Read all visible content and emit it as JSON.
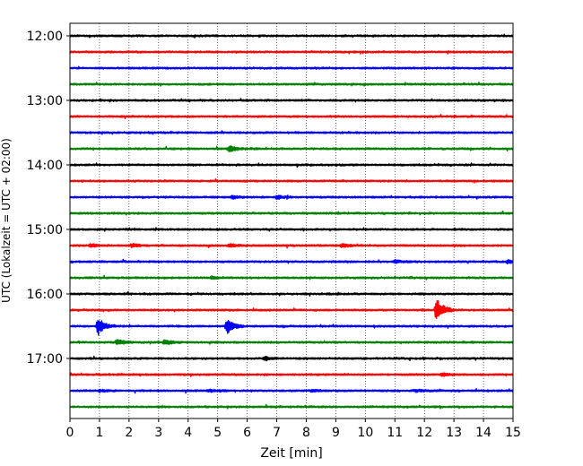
{
  "chart_data": {
    "type": "line",
    "title": "",
    "xlabel": "Zeit  [min]",
    "ylabel": "UTC (Lokalzeit = UTC + 02:00)",
    "xlim": [
      0,
      15
    ],
    "x_ticks": [
      0,
      1,
      2,
      3,
      4,
      5,
      6,
      7,
      8,
      9,
      10,
      11,
      12,
      13,
      14,
      15
    ],
    "x_tick_labels": [
      "0",
      "1",
      "2",
      "3",
      "4",
      "5",
      "6",
      "7",
      "8",
      "9",
      "10",
      "11",
      "12",
      "13",
      "14",
      "15"
    ],
    "y_tick_labels": [
      "12:00",
      "13:00",
      "14:00",
      "15:00",
      "16:00",
      "17:00"
    ],
    "y_tick_rows": [
      0,
      4,
      8,
      12,
      16,
      20
    ],
    "grid": "vertical-dotted",
    "trace_interval_minutes": 15,
    "trace_colors": [
      "#000000",
      "#ff0000",
      "#0000ff",
      "#008000"
    ],
    "series": [
      {
        "start": "12:00",
        "events": []
      },
      {
        "start": "12:15",
        "events": []
      },
      {
        "start": "12:30",
        "events": []
      },
      {
        "start": "12:45",
        "events": []
      },
      {
        "start": "13:00",
        "events": []
      },
      {
        "start": "13:15",
        "events": []
      },
      {
        "start": "13:30",
        "events": []
      },
      {
        "start": "13:45",
        "events": [
          {
            "t": 5.4,
            "amp": 0.4
          }
        ]
      },
      {
        "start": "14:00",
        "events": []
      },
      {
        "start": "14:15",
        "events": []
      },
      {
        "start": "14:30",
        "events": [
          {
            "t": 5.5,
            "amp": 0.2
          },
          {
            "t": 7.0,
            "amp": 0.2
          }
        ]
      },
      {
        "start": "14:45",
        "events": []
      },
      {
        "start": "15:00",
        "events": []
      },
      {
        "start": "15:15",
        "events": [
          {
            "t": 0.7,
            "amp": 0.25
          },
          {
            "t": 2.1,
            "amp": 0.2
          },
          {
            "t": 5.4,
            "amp": 0.2
          },
          {
            "t": 9.2,
            "amp": 0.2
          }
        ]
      },
      {
        "start": "15:30",
        "events": [
          {
            "t": 11.0,
            "amp": 0.2
          },
          {
            "t": 14.8,
            "amp": 0.2
          }
        ]
      },
      {
        "start": "15:45",
        "events": [
          {
            "t": 4.8,
            "amp": 0.15
          }
        ]
      },
      {
        "start": "16:00",
        "events": []
      },
      {
        "start": "16:15",
        "events": [
          {
            "t": 12.4,
            "amp": 1.6
          }
        ]
      },
      {
        "start": "16:30",
        "events": [
          {
            "t": 0.95,
            "amp": 1.1
          },
          {
            "t": 5.3,
            "amp": 1.0
          }
        ]
      },
      {
        "start": "16:45",
        "events": [
          {
            "t": 1.6,
            "amp": 0.35
          },
          {
            "t": 3.2,
            "amp": 0.3
          }
        ]
      },
      {
        "start": "17:00",
        "events": [
          {
            "t": 6.6,
            "amp": 0.2
          }
        ]
      },
      {
        "start": "17:15",
        "events": [
          {
            "t": 12.6,
            "amp": 0.2
          }
        ]
      },
      {
        "start": "17:30",
        "events": [
          {
            "t": 1.0,
            "amp": 0.15
          },
          {
            "t": 4.7,
            "amp": 0.15
          },
          {
            "t": 8.2,
            "amp": 0.15
          },
          {
            "t": 11.7,
            "amp": 0.15
          }
        ]
      },
      {
        "start": "17:45",
        "events": []
      }
    ]
  }
}
